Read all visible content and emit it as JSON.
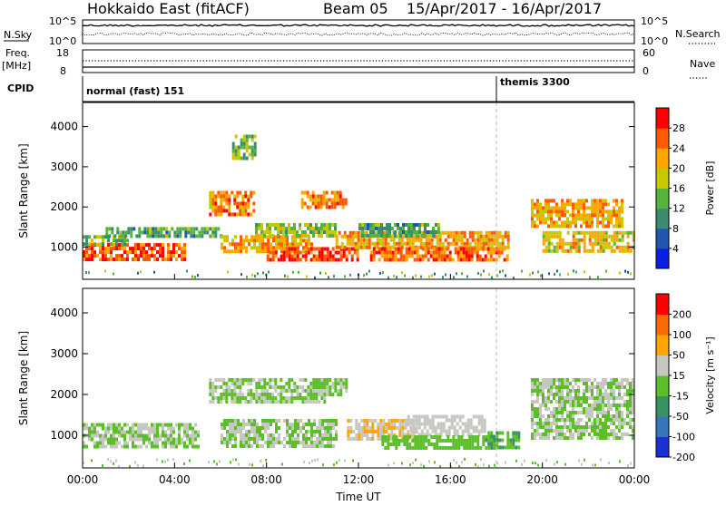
{
  "header": {
    "station": "Hokkaido East (fitACF)",
    "beam": "Beam 05",
    "daterange": "15/Apr/2017 - 16/Apr/2017"
  },
  "side_labels": {
    "nsky": "N.Sky",
    "freq": "Freq.",
    "mhz": "[MHz]",
    "cpid": "CPID",
    "nsearch": "N.Search",
    "nave": "Nave"
  },
  "top_ticks": {
    "nsky_hi": "10^5",
    "nsky_lo": "10^0",
    "nsearch_hi": "10^5",
    "nsearch_lo": "10^0",
    "freq_hi": "18",
    "freq_lo": "8",
    "nave_hi": "60",
    "nave_lo": "0"
  },
  "cpid": {
    "mode1": "normal (fast) 151",
    "mode2": "themis 3300",
    "switch_hour": 18
  },
  "chart_data": [
    {
      "type": "heatmap",
      "panel": "power",
      "ylabel": "Slant Range [km]",
      "yticks": [
        "1000",
        "2000",
        "3000",
        "4000"
      ],
      "ylim": [
        200,
        4600
      ],
      "xlim": [
        0,
        24
      ],
      "colorbar_label": "Power [dB]",
      "colorbar_ticks": [
        "4",
        "8",
        "12",
        "16",
        "20",
        "24",
        "28"
      ],
      "colorbar_range": [
        0,
        32
      ],
      "colors": [
        "#0a1ee6",
        "#2255b0",
        "#3c8c6e",
        "#55b43c",
        "#c8c800",
        "#ffa500",
        "#ff5a00",
        "#ff0000"
      ],
      "regions": [
        {
          "x": [
            0,
            4.5
          ],
          "y": [
            700,
            1100
          ],
          "level": 26
        },
        {
          "x": [
            0,
            2
          ],
          "y": [
            1100,
            1300
          ],
          "level": 14
        },
        {
          "x": [
            1,
            6
          ],
          "y": [
            1300,
            1500
          ],
          "level": 12
        },
        {
          "x": [
            5.5,
            7.5
          ],
          "y": [
            1800,
            2400
          ],
          "level": 24
        },
        {
          "x": [
            6,
            10
          ],
          "y": [
            900,
            1300
          ],
          "level": 22
        },
        {
          "x": [
            8,
            12
          ],
          "y": [
            700,
            1000
          ],
          "level": 28
        },
        {
          "x": [
            7.5,
            11
          ],
          "y": [
            1300,
            1600
          ],
          "level": 16
        },
        {
          "x": [
            9.5,
            11.5
          ],
          "y": [
            2000,
            2400
          ],
          "level": 24
        },
        {
          "x": [
            11,
            18.5
          ],
          "y": [
            1000,
            1400
          ],
          "level": 22
        },
        {
          "x": [
            12.5,
            18.5
          ],
          "y": [
            700,
            1000
          ],
          "level": 26
        },
        {
          "x": [
            12,
            15.5
          ],
          "y": [
            1300,
            1600
          ],
          "level": 12
        },
        {
          "x": [
            19.5,
            23.5
          ],
          "y": [
            1500,
            2200
          ],
          "level": 22
        },
        {
          "x": [
            20,
            24
          ],
          "y": [
            900,
            1400
          ],
          "level": 20
        },
        {
          "x": [
            6.5,
            7.5
          ],
          "y": [
            3200,
            3800
          ],
          "level": 14
        }
      ]
    },
    {
      "type": "heatmap",
      "panel": "velocity",
      "ylabel": "Slant Range [km]",
      "yticks": [
        "1000",
        "2000",
        "3000",
        "4000"
      ],
      "ylim": [
        200,
        4600
      ],
      "xlim": [
        0,
        24
      ],
      "xticks": [
        "00:00",
        "04:00",
        "08:00",
        "12:00",
        "16:00",
        "20:00",
        "00:00"
      ],
      "xlabel": "Time UT",
      "colorbar_label": "Velocity [m s⁻¹]",
      "colorbar_ticks": [
        "200",
        "100",
        "50",
        "15",
        "-15",
        "-50",
        "-100",
        "-200"
      ],
      "colorbar_range": [
        -250,
        250
      ],
      "colors": [
        "#1b2fd4",
        "#3575b8",
        "#379264",
        "#5cbf2a",
        "#c7c7c2",
        "#ffa500",
        "#ff6a00",
        "#ff0000"
      ],
      "regions": [
        {
          "x": [
            0,
            5
          ],
          "y": [
            700,
            1300
          ],
          "level": 0
        },
        {
          "x": [
            5.5,
            10.5
          ],
          "y": [
            1800,
            2400
          ],
          "level": 0
        },
        {
          "x": [
            6,
            11
          ],
          "y": [
            700,
            1400
          ],
          "level": 0
        },
        {
          "x": [
            11.5,
            14.5
          ],
          "y": [
            900,
            1400
          ],
          "level": 60
        },
        {
          "x": [
            14,
            17.5
          ],
          "y": [
            1000,
            1500
          ],
          "level": 40
        },
        {
          "x": [
            13,
            18
          ],
          "y": [
            700,
            1000
          ],
          "level": -40
        },
        {
          "x": [
            17.5,
            19
          ],
          "y": [
            700,
            1100
          ],
          "level": -60
        },
        {
          "x": [
            19.5,
            24
          ],
          "y": [
            900,
            2400
          ],
          "level": 0
        },
        {
          "x": [
            10,
            11.5
          ],
          "y": [
            2000,
            2400
          ],
          "level": 0
        }
      ]
    }
  ]
}
